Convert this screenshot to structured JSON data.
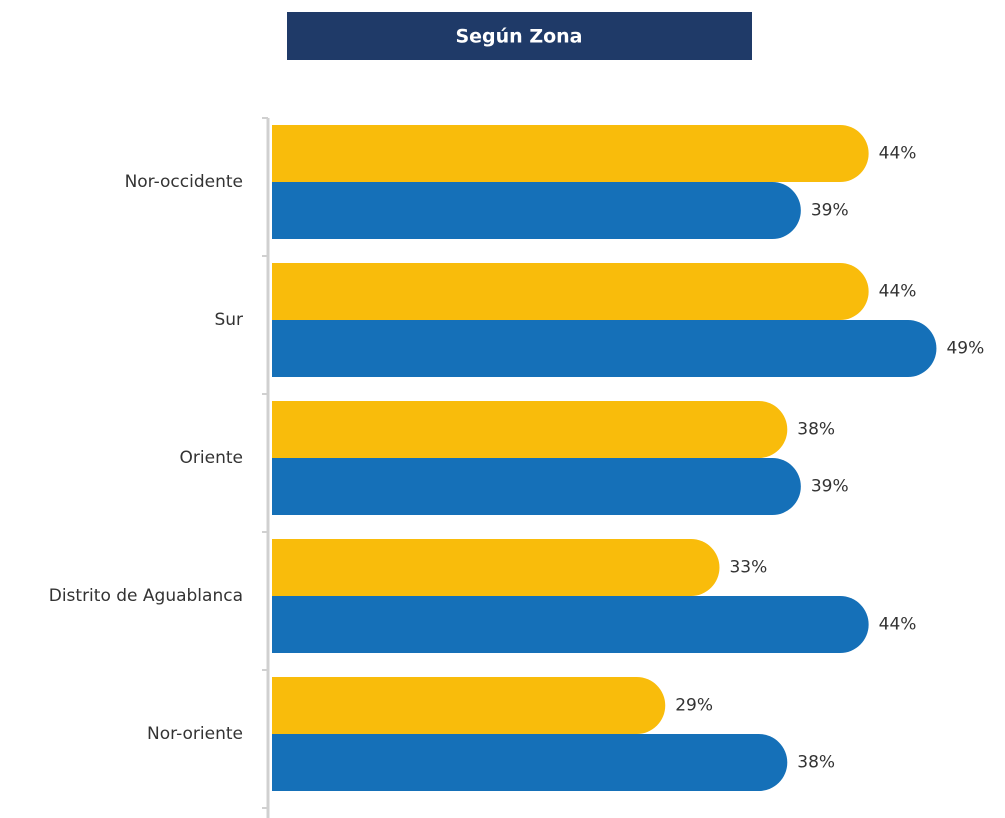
{
  "chart_data": {
    "type": "bar",
    "orientation": "horizontal",
    "title": "Según Zona",
    "categories": [
      "Nor-occidente",
      "Sur",
      "Oriente",
      "Distrito de Aguablanca",
      "Nor-oriente"
    ],
    "series": [
      {
        "color": "#f9bc0b",
        "values": [
          44,
          44,
          38,
          33,
          29
        ],
        "value_labels": [
          "44%",
          "44%",
          "38%",
          "33%",
          "29%"
        ]
      },
      {
        "color": "#1570b8",
        "values": [
          39,
          49,
          39,
          44,
          38
        ],
        "value_labels": [
          "39%",
          "49%",
          "39%",
          "44%",
          "38%"
        ]
      }
    ],
    "xlim": [
      0,
      50
    ]
  }
}
